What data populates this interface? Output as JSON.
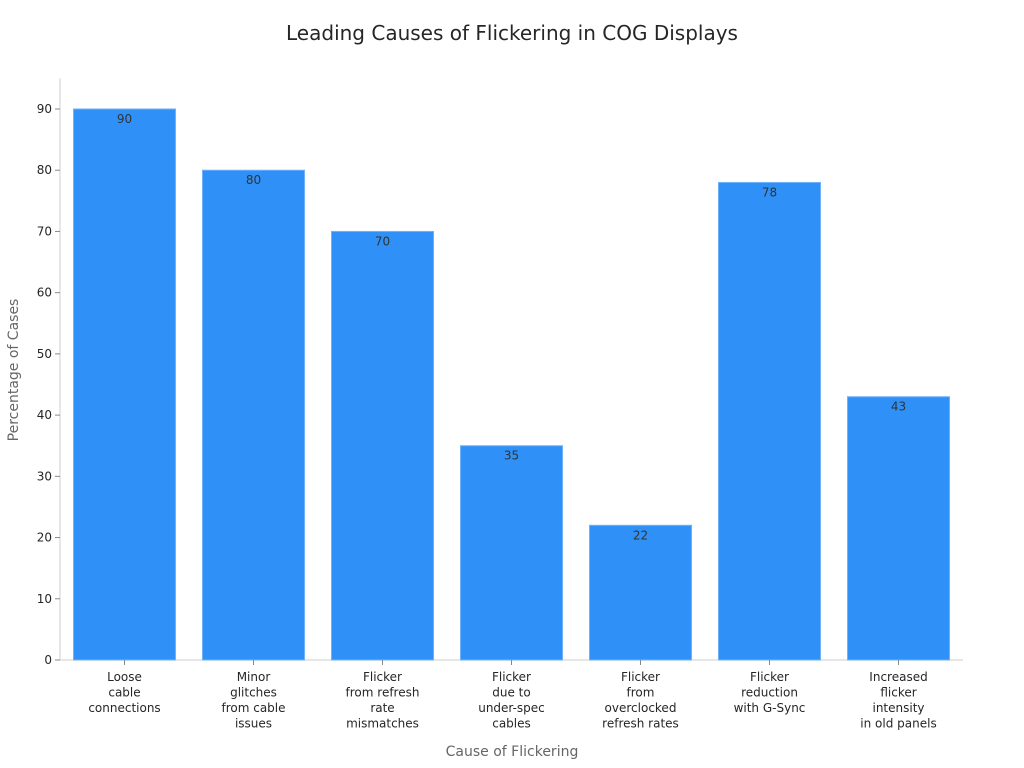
{
  "chart_data": {
    "type": "bar",
    "title": "Leading Causes of Flickering in COG Displays",
    "xlabel": "Cause of Flickering",
    "ylabel": "Percentage of Cases",
    "ylim": [
      0,
      95
    ],
    "yticks": [
      0,
      10,
      20,
      30,
      40,
      50,
      60,
      70,
      80,
      90
    ],
    "grid": false,
    "bar_color": "#2f91f8",
    "categories": [
      [
        "Loose",
        "cable",
        "connections"
      ],
      [
        "Minor",
        "glitches",
        "from cable",
        "issues"
      ],
      [
        "Flicker",
        "from refresh",
        "rate",
        "mismatches"
      ],
      [
        "Flicker",
        "due to",
        "under-spec",
        "cables"
      ],
      [
        "Flicker",
        "from",
        "overclocked",
        "refresh rates"
      ],
      [
        "Flicker",
        "reduction",
        "with G-Sync"
      ],
      [
        "Increased",
        "flicker",
        "intensity",
        "in old panels"
      ]
    ],
    "values": [
      90,
      80,
      70,
      35,
      22,
      78,
      43
    ]
  }
}
